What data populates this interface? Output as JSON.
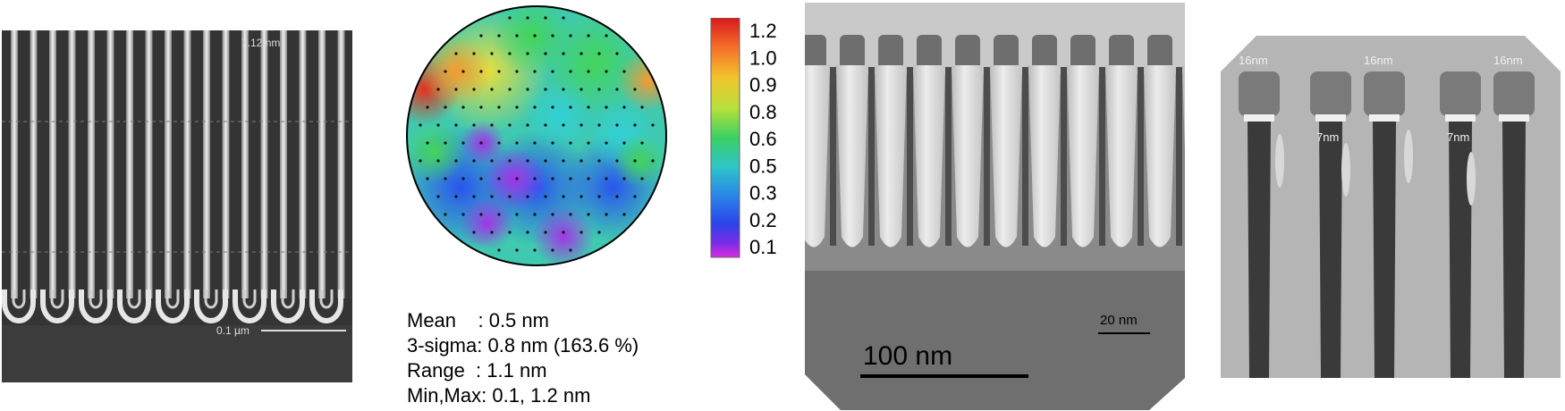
{
  "sem_panel": {
    "top_label": "7.12 nm",
    "bottom_label": "0.1 µm"
  },
  "wafer_map": {
    "colorbar_ticks": [
      "1.2",
      "1.0",
      "0.9",
      "0.8",
      "0.6",
      "0.5",
      "0.3",
      "0.2",
      "0.1"
    ],
    "colorbar_colors": [
      "#d7191c",
      "#f46d2a",
      "#f2c42c",
      "#b5e03b",
      "#3bcf63",
      "#2ec7c7",
      "#2a86e6",
      "#2b43e8",
      "#7a2de6",
      "#d62de0"
    ],
    "stats": {
      "mean": "Mean    : 0.5 nm",
      "sigma": "3-sigma: 0.8 nm (163.6 %)",
      "range": "Range  : 1.1 nm",
      "minmax": "Min,Max: 0.1, 1.2 nm"
    }
  },
  "tem_panel_1": {
    "scale_label": "100 nm"
  },
  "tem_panel_2": {
    "labels": [
      "16nm",
      "16nm",
      "16nm",
      "7nm",
      "7nm"
    ],
    "scale_label": "20 nm"
  }
}
